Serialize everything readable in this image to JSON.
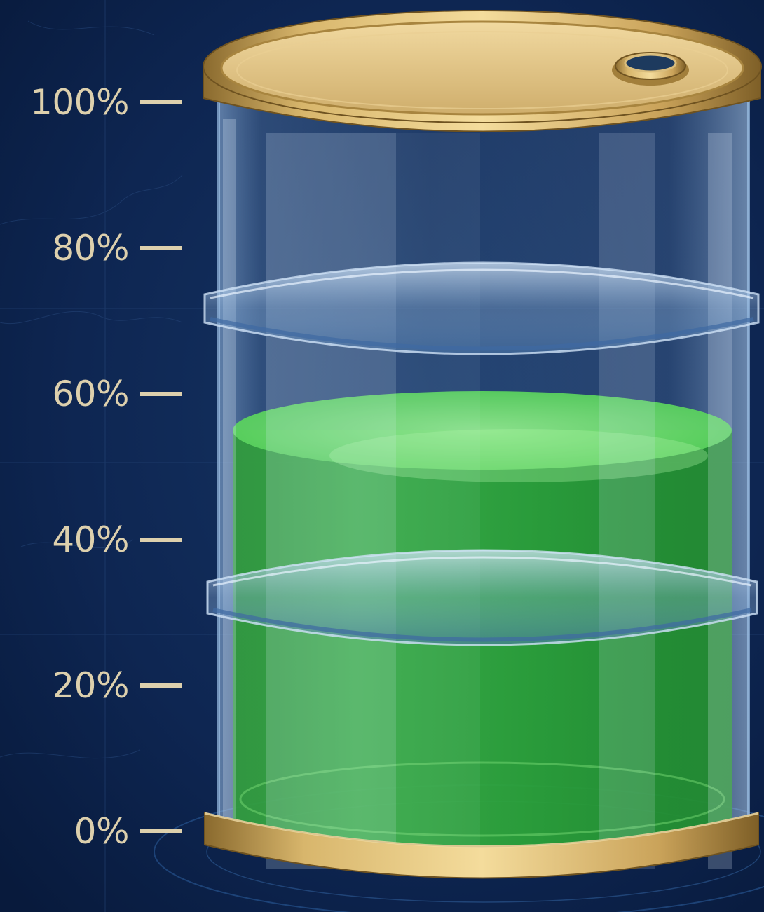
{
  "gauge": {
    "fill_level_percent": 55,
    "fill_color": "#44c64f",
    "scale_color": "#ddd0ad",
    "background_color": "#0c2148",
    "ticks": [
      {
        "label": "100%",
        "value": 100
      },
      {
        "label": "80%",
        "value": 80
      },
      {
        "label": "60%",
        "value": 60
      },
      {
        "label": "40%",
        "value": 40
      },
      {
        "label": "20%",
        "value": 20
      },
      {
        "label": "0%",
        "value": 0
      }
    ]
  }
}
